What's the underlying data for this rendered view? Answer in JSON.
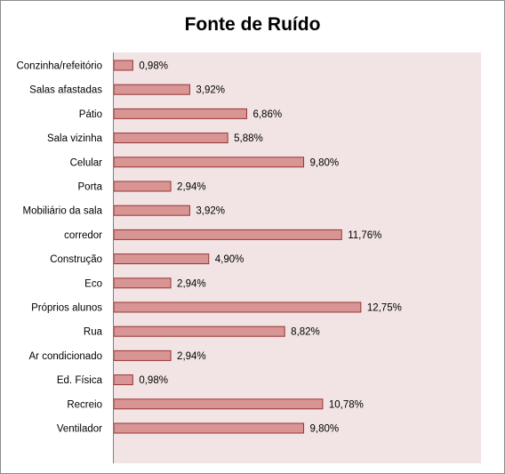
{
  "chart_data": {
    "type": "bar",
    "orientation": "horizontal",
    "title": "Fonte de Ruído",
    "categories": [
      "Conzinha/refeitório",
      "Salas afastadas",
      "Pátio",
      "Sala vizinha",
      "Celular",
      "Porta",
      "Mobiliário da sala",
      "corredor",
      "Construção",
      "Eco",
      "Próprios alunos",
      "Rua",
      "Ar condicionado",
      "Ed. Física",
      "Recreio",
      "Ventilador"
    ],
    "values": [
      0.98,
      3.92,
      6.86,
      5.88,
      9.8,
      2.94,
      3.92,
      11.76,
      4.9,
      2.94,
      12.75,
      8.82,
      2.94,
      0.98,
      10.78,
      9.8
    ],
    "data_labels": [
      "0,98%",
      "3,92%",
      "6,86%",
      "5,88%",
      "9,80%",
      "2,94%",
      "3,92%",
      "11,76%",
      "4,90%",
      "2,94%",
      "12,75%",
      "8,82%",
      "2,94%",
      "0,98%",
      "10,78%",
      "9,80%"
    ],
    "unit": "%",
    "xlim": [
      0,
      19
    ],
    "grid": false,
    "legend": "none",
    "colors": {
      "bar_fill": "#d99594",
      "bar_stroke": "#943634",
      "plot_background": "#f2e4e4",
      "axis": "#7f7f7f"
    }
  }
}
